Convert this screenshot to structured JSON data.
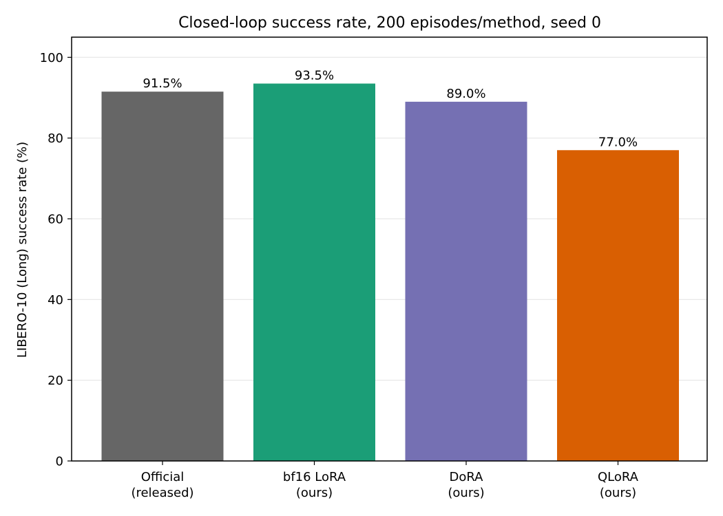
{
  "chart_data": {
    "type": "bar",
    "title": "Closed-loop success rate, 200 episodes/method, seed 0",
    "xlabel": "",
    "ylabel": "LIBERO-10 (Long) success rate (%)",
    "ylim": [
      0,
      105
    ],
    "yticks": [
      0,
      20,
      40,
      60,
      80,
      100
    ],
    "grid": "horizontal",
    "categories": [
      [
        "Official",
        "(released)"
      ],
      [
        "bf16 LoRA",
        "(ours)"
      ],
      [
        "DoRA",
        "(ours)"
      ],
      [
        "QLoRA",
        "(ours)"
      ]
    ],
    "values": [
      91.5,
      93.5,
      89.0,
      77.0
    ],
    "data_labels": [
      "91.5%",
      "93.5%",
      "89.0%",
      "77.0%"
    ],
    "colors": [
      "#666666",
      "#1b9e77",
      "#7570b3",
      "#d95f02"
    ]
  }
}
